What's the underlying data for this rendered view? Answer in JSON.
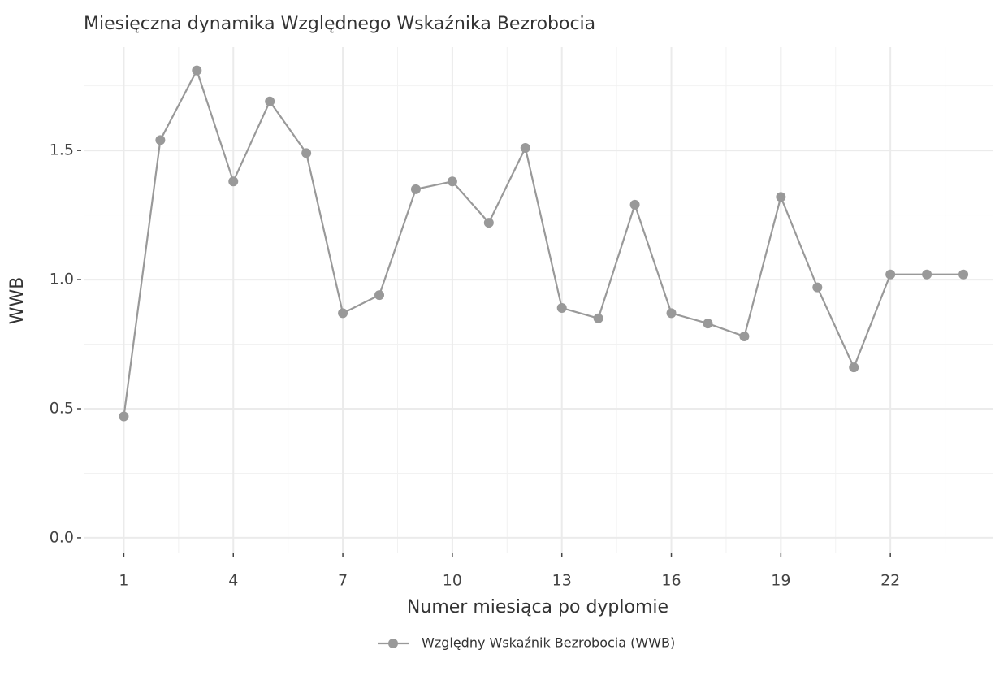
{
  "chart_data": {
    "type": "line",
    "title": "Miesięczna dynamika Względnego Wskaźnika Bezrobocia",
    "x_label": "Numer miesiąca po dyplomie",
    "y_label": "WWB",
    "x": [
      1,
      2,
      3,
      4,
      5,
      6,
      7,
      8,
      9,
      10,
      11,
      12,
      13,
      14,
      15,
      16,
      17,
      18,
      19,
      20,
      21,
      22,
      23,
      24
    ],
    "series": [
      {
        "name": "Względny Wskaźnik Bezrobocia (WWB)",
        "color": "#999999",
        "values": [
          0.47,
          1.54,
          1.81,
          1.38,
          1.69,
          1.49,
          0.87,
          0.94,
          1.35,
          1.38,
          1.22,
          1.51,
          0.89,
          0.85,
          1.29,
          0.87,
          0.83,
          0.78,
          1.32,
          0.97,
          0.66,
          1.02,
          1.02,
          1.02
        ]
      }
    ],
    "xlim": [
      -0.1,
      24.8
    ],
    "xticks": [
      1,
      4,
      7,
      10,
      13,
      16,
      19,
      22
    ],
    "ylim": [
      -0.06,
      1.9
    ],
    "yticks": [
      {
        "value": 0,
        "label": "0.0"
      },
      0.5,
      {
        "value": 1,
        "label": "1.0"
      },
      1.5
    ],
    "grid": true,
    "minor_grid": true,
    "legend": "bottom"
  }
}
